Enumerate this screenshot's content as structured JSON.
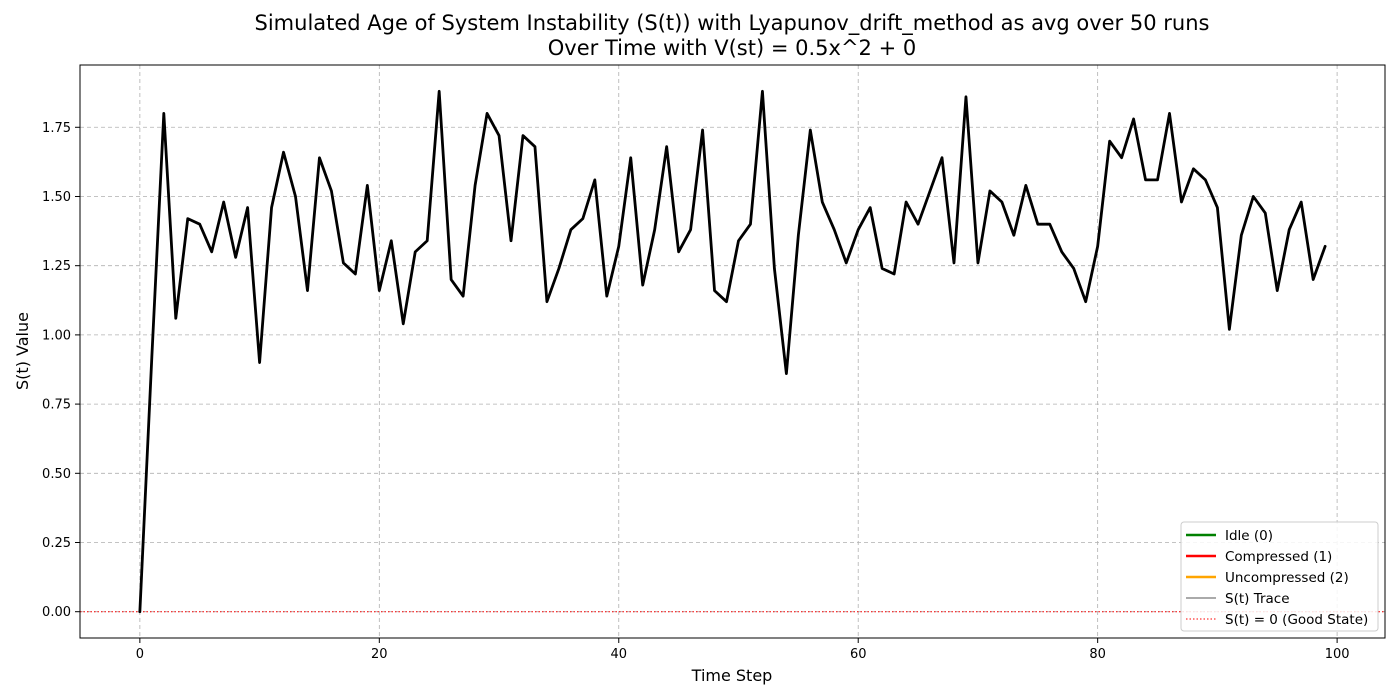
{
  "chart_data": {
    "type": "line",
    "title_line1": "Simulated Age of System Instability (S(t)) with Lyapunov_drift_method as avg over 50 runs",
    "title_line2": "Over Time with V(st) = 0.5x^2 + 0",
    "xlabel": "Time Step",
    "ylabel": "S(t) Value",
    "xlim": [
      -5,
      104
    ],
    "ylim": [
      -0.095,
      1.975
    ],
    "x_ticks": [
      0,
      20,
      40,
      60,
      80,
      100
    ],
    "x_tick_labels": [
      "0",
      "20",
      "40",
      "60",
      "80",
      "100"
    ],
    "y_ticks": [
      0.0,
      0.25,
      0.5,
      0.75,
      1.0,
      1.25,
      1.5,
      1.75
    ],
    "y_tick_labels": [
      "0.00",
      "0.25",
      "0.50",
      "0.75",
      "1.00",
      "1.25",
      "1.50",
      "1.75"
    ],
    "grid": true,
    "legend_position": "lower-right",
    "x": [
      0,
      1,
      2,
      3,
      4,
      5,
      6,
      7,
      8,
      9,
      10,
      11,
      12,
      13,
      14,
      15,
      16,
      17,
      18,
      19,
      20,
      21,
      22,
      23,
      24,
      25,
      26,
      27,
      28,
      29,
      30,
      31,
      32,
      33,
      34,
      35,
      36,
      37,
      38,
      39,
      40,
      41,
      42,
      43,
      44,
      45,
      46,
      47,
      48,
      49,
      50,
      51,
      52,
      53,
      54,
      55,
      56,
      57,
      58,
      59,
      60,
      61,
      62,
      63,
      64,
      65,
      66,
      67,
      68,
      69,
      70,
      71,
      72,
      73,
      74,
      75,
      76,
      77,
      78,
      79,
      80,
      81,
      82,
      83,
      84,
      85,
      86,
      87,
      88,
      89,
      90,
      91,
      92,
      93,
      94,
      95,
      96,
      97,
      98,
      99
    ],
    "series": [
      {
        "name": "S(t) Trace",
        "color": "#000000",
        "values": [
          0.0,
          0.92,
          1.8,
          1.06,
          1.42,
          1.4,
          1.3,
          1.48,
          1.28,
          1.46,
          0.9,
          1.46,
          1.66,
          1.5,
          1.16,
          1.64,
          1.52,
          1.26,
          1.22,
          1.54,
          1.16,
          1.34,
          1.04,
          1.3,
          1.34,
          1.88,
          1.2,
          1.14,
          1.54,
          1.8,
          1.72,
          1.34,
          1.72,
          1.68,
          1.12,
          1.24,
          1.38,
          1.42,
          1.56,
          1.14,
          1.32,
          1.64,
          1.18,
          1.38,
          1.68,
          1.3,
          1.38,
          1.74,
          1.16,
          1.12,
          1.34,
          1.4,
          1.88,
          1.24,
          0.86,
          1.36,
          1.74,
          1.48,
          1.38,
          1.26,
          1.38,
          1.46,
          1.24,
          1.22,
          1.48,
          1.4,
          1.52,
          1.64,
          1.26,
          1.86,
          1.26,
          1.52,
          1.48,
          1.36,
          1.54,
          1.4,
          1.4,
          1.3,
          1.24,
          1.12,
          1.32,
          1.7,
          1.64,
          1.78,
          1.56,
          1.56,
          1.8,
          1.48,
          1.6,
          1.56,
          1.46,
          1.02,
          1.36,
          1.5,
          1.44,
          1.16,
          1.38,
          1.48,
          1.2,
          1.32
        ]
      }
    ],
    "reference_line": {
      "y": 0,
      "color": "#ff0000"
    },
    "legend": [
      {
        "label": "Idle (0)",
        "color": "#008000",
        "style": "solid-thick"
      },
      {
        "label": "Compressed (1)",
        "color": "#ff0000",
        "style": "solid-thick"
      },
      {
        "label": "Uncompressed (2)",
        "color": "#ffa500",
        "style": "solid-thick"
      },
      {
        "label": "S(t) Trace",
        "color": "#555555",
        "style": "solid-thin"
      },
      {
        "label": "S(t) = 0 (Good State)",
        "color": "#ff0000",
        "style": "dotted"
      }
    ]
  }
}
